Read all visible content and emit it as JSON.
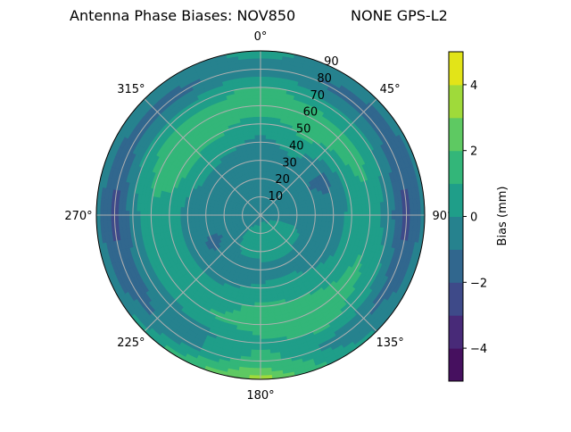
{
  "chart_data": {
    "type": "heatmap",
    "subtype": "polar filled contour",
    "title_left": "Antenna Phase Biases: NOV850",
    "title_right": "NONE GPS-L2",
    "theta_direction": "clockwise",
    "theta_zero": "top",
    "theta_tick_labels": [
      "0°",
      "45°",
      "90°",
      "135°",
      "180°",
      "225°",
      "270°",
      "315°"
    ],
    "theta_ticks": [
      0,
      45,
      90,
      135,
      180,
      225,
      270,
      315
    ],
    "r_ticks": [
      10,
      20,
      30,
      40,
      50,
      60,
      70,
      80,
      90
    ],
    "r_tick_labels": [
      "10",
      "20",
      "30",
      "40",
      "50",
      "60",
      "70",
      "80",
      "90"
    ],
    "rlim": [
      0,
      90
    ],
    "grid": true,
    "azimuths": [
      0,
      30,
      60,
      90,
      120,
      150,
      180,
      210,
      240,
      270,
      300,
      330
    ],
    "zeniths": [
      0,
      10,
      20,
      30,
      40,
      50,
      60,
      70,
      80,
      90
    ],
    "values": [
      [
        -0.5,
        -0.5,
        -0.5,
        -0.5,
        -0.3,
        0.5,
        1.5,
        1.2,
        -0.5,
        0.5
      ],
      [
        -0.5,
        -0.5,
        -0.5,
        -0.5,
        0.3,
        1.2,
        1.5,
        0.5,
        -1.2,
        -0.5
      ],
      [
        -0.5,
        -0.5,
        -0.5,
        -1.0,
        -1.3,
        0.5,
        1.5,
        0.2,
        -1.5,
        -0.8
      ],
      [
        -0.5,
        -0.5,
        -0.5,
        -0.6,
        -0.7,
        0.3,
        0.5,
        -0.5,
        -2.5,
        -0.5
      ],
      [
        -0.5,
        0.3,
        0.3,
        -0.5,
        -0.5,
        0.5,
        1.2,
        0.5,
        -1.5,
        -0.5
      ],
      [
        -0.5,
        0.5,
        0.5,
        -0.3,
        0.2,
        1.0,
        1.5,
        1.2,
        -0.5,
        0.5
      ],
      [
        -0.5,
        0.5,
        0.5,
        -0.5,
        0.2,
        1.2,
        1.5,
        0.8,
        1.5,
        3.5
      ],
      [
        -0.5,
        0.3,
        0.2,
        -0.5,
        -0.3,
        0.5,
        1.0,
        -0.3,
        -0.5,
        1.5
      ],
      [
        -0.5,
        -0.5,
        -0.8,
        -1.3,
        -0.5,
        0.5,
        0.8,
        -0.6,
        -1.5,
        -0.5
      ],
      [
        -0.5,
        -0.5,
        -0.5,
        -0.5,
        -0.5,
        0.5,
        0.8,
        -0.5,
        -2.5,
        -0.5
      ],
      [
        -0.5,
        -0.5,
        -0.5,
        -0.5,
        0.3,
        1.5,
        1.5,
        0.5,
        -1.5,
        -0.5
      ],
      [
        -0.5,
        -0.5,
        -0.5,
        -0.5,
        0.2,
        1.2,
        1.5,
        0.5,
        -1.2,
        -0.5
      ]
    ],
    "colorbar": {
      "label": "Bias (mm)",
      "levels": [
        -5,
        -4,
        -3,
        -2,
        -1,
        0,
        1,
        2,
        3,
        4,
        5
      ],
      "ticks": [
        -4,
        -2,
        0,
        2,
        4
      ],
      "tick_labels": [
        "−4",
        "−2",
        "0",
        "2",
        "4"
      ],
      "colors": [
        "#46105f",
        "#482a78",
        "#3e4a89",
        "#31678e",
        "#26828e",
        "#1f9e89",
        "#33b679",
        "#5ec962",
        "#9fda3a",
        "#e2e418"
      ],
      "colormap": "viridis"
    }
  }
}
